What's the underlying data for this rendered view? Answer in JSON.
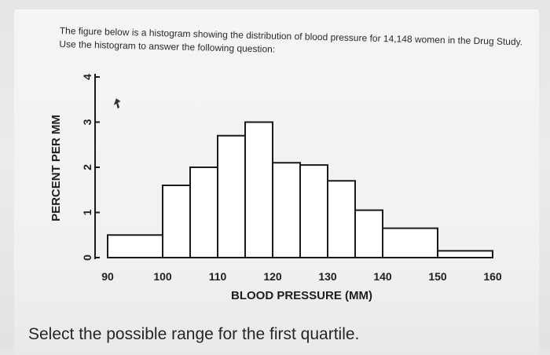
{
  "question": {
    "text": "The figure below is a histogram showing the distribution of blood pressure for 14,148 women in the Drug Study. Use the histogram to answer the following question:"
  },
  "prompt": {
    "text": "Select the possible range for the first quartile."
  },
  "chart_data": {
    "type": "bar",
    "title": "",
    "xlabel": "BLOOD PRESSURE (MM)",
    "ylabel": "PERCENT PER MM",
    "xlim": [
      90,
      160
    ],
    "ylim": [
      0,
      4
    ],
    "x_ticks": [
      "90",
      "100",
      "110",
      "120",
      "130",
      "140",
      "150",
      "160"
    ],
    "y_ticks": [
      "0",
      "1",
      "2",
      "3",
      "4"
    ],
    "bins": [
      {
        "from": 90,
        "to": 100,
        "value": 0.5
      },
      {
        "from": 100,
        "to": 105,
        "value": 1.6
      },
      {
        "from": 105,
        "to": 110,
        "value": 2.0
      },
      {
        "from": 110,
        "to": 115,
        "value": 2.7
      },
      {
        "from": 115,
        "to": 120,
        "value": 3.0
      },
      {
        "from": 120,
        "to": 125,
        "value": 2.1
      },
      {
        "from": 125,
        "to": 130,
        "value": 2.05
      },
      {
        "from": 130,
        "to": 135,
        "value": 1.7
      },
      {
        "from": 135,
        "to": 140,
        "value": 1.05
      },
      {
        "from": 140,
        "to": 150,
        "value": 0.65
      },
      {
        "from": 150,
        "to": 160,
        "value": 0.15
      }
    ],
    "grid": false,
    "colors": {
      "bar_fill": "#ffffff",
      "bar_stroke": "#1a1a1a",
      "axis": "#1a1a1a"
    }
  }
}
